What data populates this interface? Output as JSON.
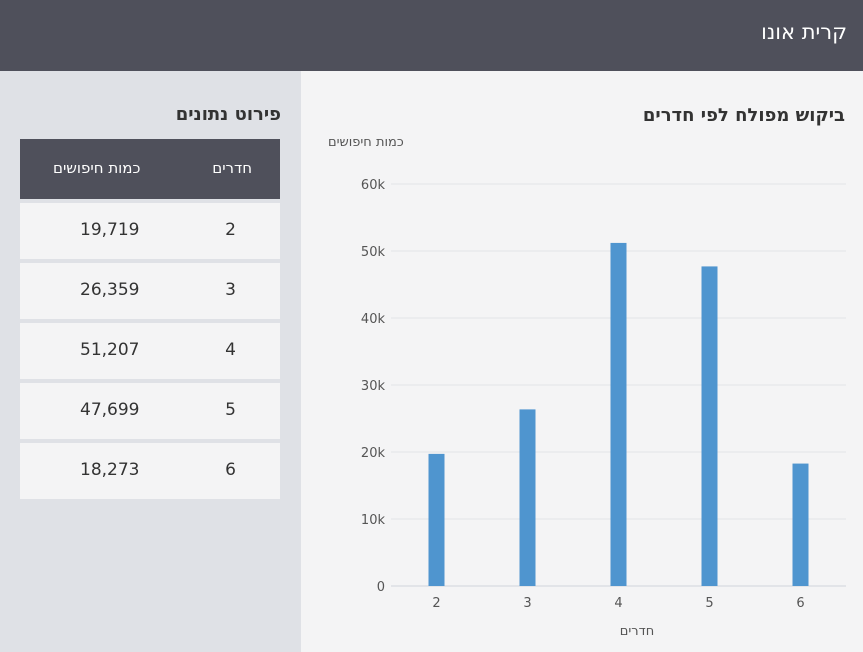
{
  "header": {
    "title": "קרית אונו"
  },
  "table": {
    "title": "פירוט נתונים",
    "headers": {
      "rooms": "חדרים",
      "count": "כמות חיפושים"
    },
    "rows": [
      {
        "rooms": "2",
        "count": "19,719"
      },
      {
        "rooms": "3",
        "count": "26,359"
      },
      {
        "rooms": "4",
        "count": "51,207"
      },
      {
        "rooms": "5",
        "count": "47,699"
      },
      {
        "rooms": "6",
        "count": "18,273"
      }
    ]
  },
  "chart": {
    "title": "ביקוש מפולח לפי חדרים"
  },
  "chart_data": {
    "type": "bar",
    "title": "ביקוש מפולח לפי חדרים",
    "xlabel": "חדרים",
    "ylabel": "כמות חיפושים",
    "categories": [
      "2",
      "3",
      "4",
      "5",
      "6"
    ],
    "values": [
      19719,
      26359,
      51207,
      47699,
      18273
    ],
    "ylim": [
      0,
      60000
    ],
    "yticks": [
      0,
      10000,
      20000,
      30000,
      40000,
      50000,
      60000
    ],
    "ytick_labels": [
      "0",
      "10k",
      "20k",
      "30k",
      "40k",
      "50k",
      "60k"
    ],
    "grid": true,
    "bar_color": "#4f95cf"
  },
  "colors": {
    "header": "#4f505b",
    "accent": "#4f95cf"
  }
}
